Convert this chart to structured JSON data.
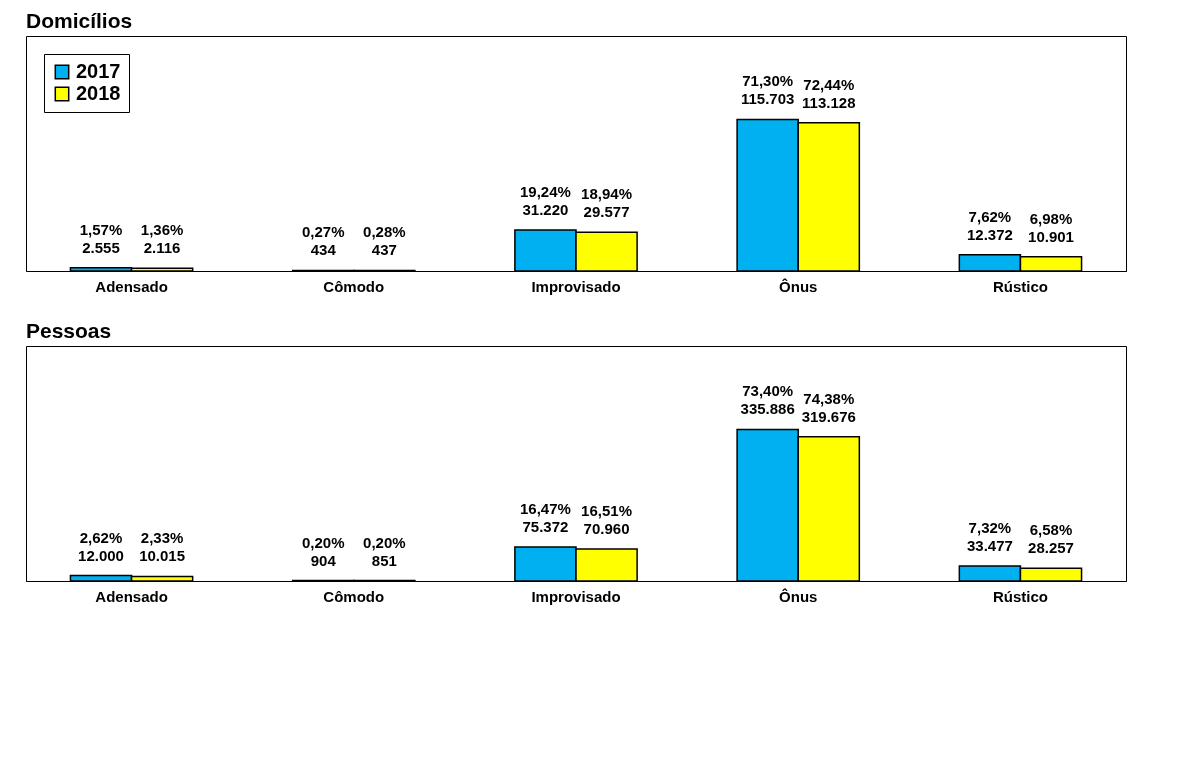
{
  "chart_data": [
    {
      "type": "bar",
      "title": "Domicílios",
      "categories": [
        "Adensado",
        "Cômodo",
        "Improvisado",
        "Ônus",
        "Rústico"
      ],
      "legend": "top left",
      "series": [
        {
          "name": "2017",
          "color": "#00b0f0",
          "values": [
            2555,
            434,
            31220,
            115703,
            12372
          ],
          "value_labels": [
            "1,57%\n2.555",
            "0,27%\n434",
            "19,24%\n31.220",
            "71,30%\n115.703",
            "7,62%\n12.372"
          ]
        },
        {
          "name": "2018",
          "color": "#ffff00",
          "values": [
            2116,
            437,
            29577,
            113128,
            10901
          ],
          "value_labels": [
            "1,36%\n2.116",
            "0,28%\n437",
            "18,94%\n29.577",
            "72,44%\n113.128",
            "6,98%\n10.901"
          ]
        }
      ]
    },
    {
      "type": "bar",
      "title": "Pessoas",
      "categories": [
        "Adensado",
        "Cômodo",
        "Improvisado",
        "Ônus",
        "Rústico"
      ],
      "legend": "top left",
      "series": [
        {
          "name": "2017",
          "color": "#00b0f0",
          "values": [
            12000,
            904,
            75372,
            335886,
            33477
          ],
          "value_labels": [
            "2,62%\n12.000",
            "0,20%\n904",
            "16,47%\n75.372",
            "73,40%\n335.886",
            "7,32%\n33.477"
          ]
        },
        {
          "name": "2018",
          "color": "#ffff00",
          "values": [
            10015,
            851,
            70960,
            319676,
            28257
          ],
          "value_labels": [
            "2,33%\n10.015",
            "0,20%\n851",
            "16,51%\n70.960",
            "74,38%\n319.676",
            "6,58%\n28.257"
          ]
        }
      ]
    }
  ]
}
